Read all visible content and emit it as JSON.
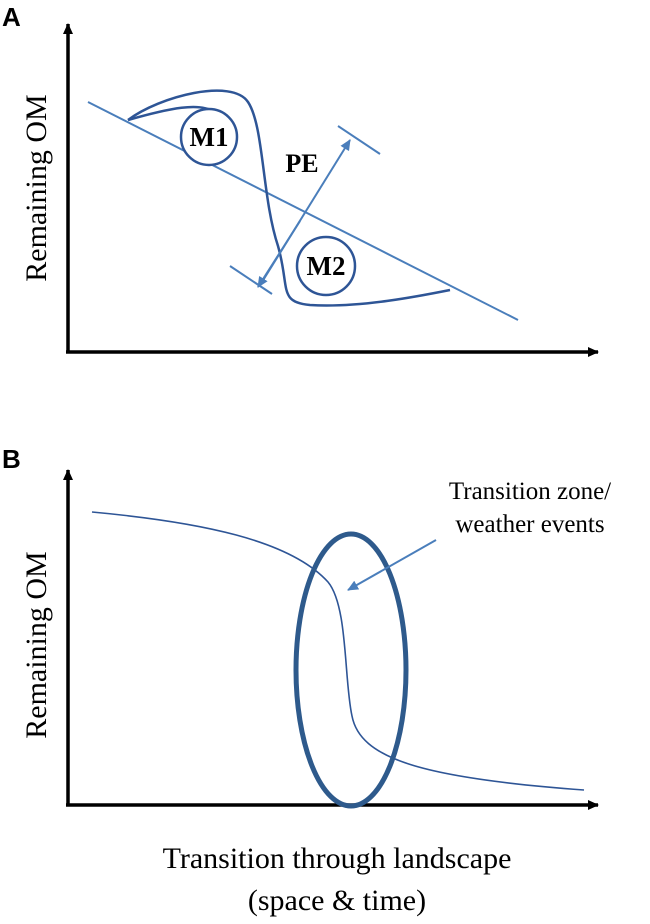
{
  "panel_a": {
    "letter": "A",
    "ylabel": "Remaining OM",
    "labels": {
      "m1": "M1",
      "m2": "M2",
      "pe": "PE"
    }
  },
  "panel_b": {
    "letter": "B",
    "ylabel": "Remaining OM",
    "annotation_line1": "Transition zone/",
    "annotation_line2": "weather events"
  },
  "xlabel_line1": "Transition through landscape",
  "xlabel_line2": "(space & time)",
  "colors": {
    "axis": "#000000",
    "line": "#4a7ebb",
    "curve": "#2e5596",
    "ellipse": "#2e5a8c"
  }
}
